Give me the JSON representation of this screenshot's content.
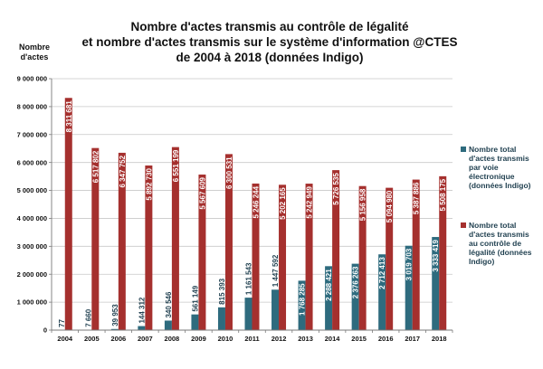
{
  "chart_data": {
    "type": "bar",
    "title": [
      "Nombre d'actes transmis au contrôle de légalité",
      "et nombre d'actes transmis sur le système d'information @CTES",
      "de 2004 à 2018 (données Indigo)"
    ],
    "ylabel": [
      "Nombre",
      "d'actes"
    ],
    "xlabel": "",
    "ylim": [
      0,
      9000000
    ],
    "y_ticks": [
      0,
      1000000,
      2000000,
      3000000,
      4000000,
      5000000,
      6000000,
      7000000,
      8000000,
      9000000
    ],
    "y_tick_labels": [
      "0",
      "1 000 000",
      "2 000 000",
      "3 000 000",
      "4 000 000",
      "5 000 000",
      "6 000 000",
      "7 000 000",
      "8 000 000",
      "9 000 000"
    ],
    "grid": true,
    "legend_position": "right",
    "categories": [
      "2004",
      "2005",
      "2006",
      "2007",
      "2008",
      "2009",
      "2010",
      "2011",
      "2012",
      "2013",
      "2014",
      "2015",
      "2016",
      "2017",
      "2018"
    ],
    "series": [
      {
        "name": [
          "Nombre total",
          "d'actes transmis",
          "par voie",
          "électronique",
          "(données Indigo)"
        ],
        "color": "#2e6b7e",
        "values": [
          77,
          7660,
          39953,
          144312,
          340546,
          561149,
          815393,
          1161543,
          1447592,
          1768285,
          2288421,
          2376263,
          2712413,
          3019703,
          3333419
        ],
        "labels": [
          "77",
          "7 660",
          "39 953",
          "144 312",
          "340 546",
          "561 149",
          "815 393",
          "1 161 543",
          "1 447 592",
          "1 768 285",
          "2 288 421",
          "2 376 263",
          "2 712 413",
          "3 019 703",
          "3 333 419"
        ]
      },
      {
        "name": [
          "Nombre total",
          "d'actes transmis",
          "au contrôle de",
          "légalité (données",
          "Indigo)"
        ],
        "color": "#a5302e",
        "values": [
          8311681,
          6517802,
          6347752,
          5892730,
          6551199,
          5567609,
          6300531,
          5246244,
          5202165,
          5242949,
          5726535,
          5156958,
          5094980,
          5387886,
          5508175
        ],
        "labels": [
          "8 311 681",
          "6 517 802",
          "6 347 752",
          "5 892 730",
          "6 551 199",
          "5 567 609",
          "6 300 531",
          "5 246 244",
          "5 202 165",
          "5 242 949",
          "5 726 535",
          "5 156 958",
          "5 094 980",
          "5 387 886",
          "5 508 175"
        ]
      }
    ]
  }
}
